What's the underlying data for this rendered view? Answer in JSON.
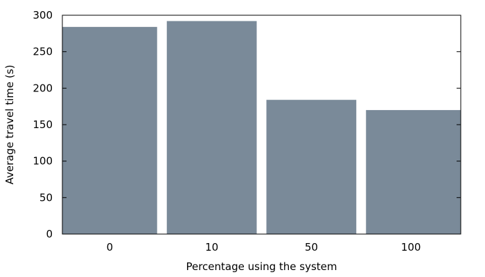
{
  "chart_data": {
    "type": "bar",
    "title": "",
    "xlabel": "Percentage using the system",
    "ylabel": "Average travel time (s)",
    "categories": [
      "0",
      "10",
      "50",
      "100"
    ],
    "values": [
      284,
      292,
      184,
      170
    ],
    "ylim": [
      0,
      300
    ],
    "yticks": [
      0,
      50,
      100,
      150,
      200,
      250,
      300
    ],
    "yticks_labels": [
      "0",
      "50",
      "100",
      "150",
      "200",
      "250",
      "300"
    ],
    "grid": false,
    "bar_color": "#7a8a99",
    "axis_color": "#000000"
  }
}
